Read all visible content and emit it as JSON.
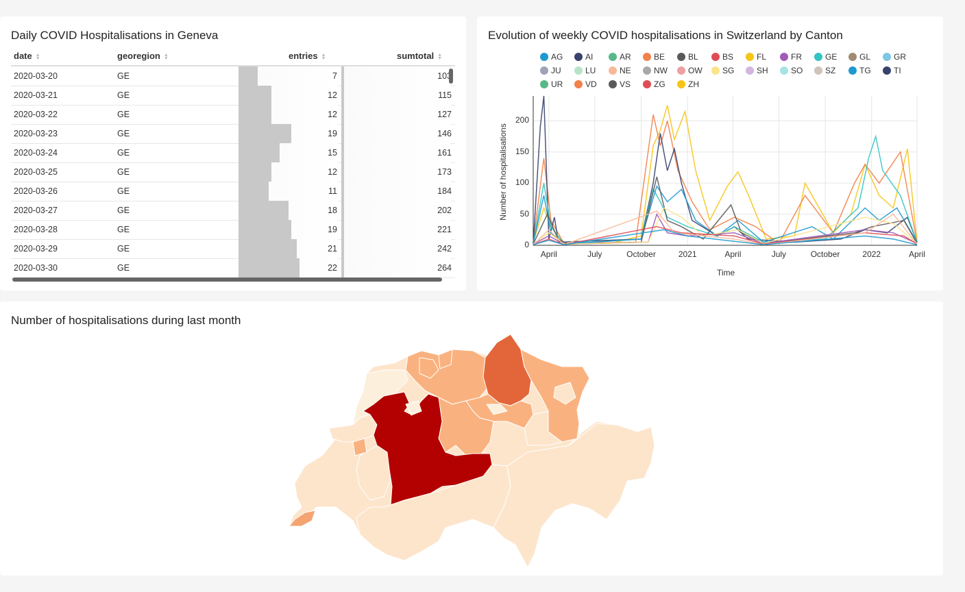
{
  "table": {
    "title": "Daily COVID Hospitalisations in Geneva",
    "columns": [
      "date",
      "georegion",
      "entries",
      "sumtotal"
    ],
    "rows": [
      {
        "date": "2020-03-20",
        "georegion": "GE",
        "entries": "7",
        "sumtotal": "103"
      },
      {
        "date": "2020-03-21",
        "georegion": "GE",
        "entries": "12",
        "sumtotal": "115"
      },
      {
        "date": "2020-03-22",
        "georegion": "GE",
        "entries": "12",
        "sumtotal": "127"
      },
      {
        "date": "2020-03-23",
        "georegion": "GE",
        "entries": "19",
        "sumtotal": "146"
      },
      {
        "date": "2020-03-24",
        "georegion": "GE",
        "entries": "15",
        "sumtotal": "161"
      },
      {
        "date": "2020-03-25",
        "georegion": "GE",
        "entries": "12",
        "sumtotal": "173"
      },
      {
        "date": "2020-03-26",
        "georegion": "GE",
        "entries": "11",
        "sumtotal": "184"
      },
      {
        "date": "2020-03-27",
        "georegion": "GE",
        "entries": "18",
        "sumtotal": "202"
      },
      {
        "date": "2020-03-28",
        "georegion": "GE",
        "entries": "19",
        "sumtotal": "221"
      },
      {
        "date": "2020-03-29",
        "georegion": "GE",
        "entries": "21",
        "sumtotal": "242"
      },
      {
        "date": "2020-03-30",
        "georegion": "GE",
        "entries": "22",
        "sumtotal": "264"
      }
    ],
    "entries_max": 36,
    "sumtotal_max": 14000
  },
  "chart": {
    "title": "Evolution of weekly COVID hospitalisations in Switzerland by Canton",
    "legend": [
      {
        "name": "AG",
        "color": "#1f9ad0"
      },
      {
        "name": "AI",
        "color": "#37436b"
      },
      {
        "name": "AR",
        "color": "#58b887"
      },
      {
        "name": "BE",
        "color": "#f2814a"
      },
      {
        "name": "BL",
        "color": "#5a5a5a"
      },
      {
        "name": "BS",
        "color": "#e04c55"
      },
      {
        "name": "FL",
        "color": "#f5c518"
      },
      {
        "name": "FR",
        "color": "#a25ab8"
      },
      {
        "name": "GE",
        "color": "#33c4c4"
      },
      {
        "name": "GL",
        "color": "#a08a72"
      },
      {
        "name": "GR",
        "color": "#7cc7e3"
      },
      {
        "name": "JU",
        "color": "#9ea3b8"
      },
      {
        "name": "LU",
        "color": "#b8e3c6"
      },
      {
        "name": "NE",
        "color": "#f8b998"
      },
      {
        "name": "NW",
        "color": "#a8a8a8"
      },
      {
        "name": "OW",
        "color": "#eca0a4"
      },
      {
        "name": "SG",
        "color": "#fbe38a"
      },
      {
        "name": "SH",
        "color": "#d3b5e0"
      },
      {
        "name": "SO",
        "color": "#a6e3e3"
      },
      {
        "name": "SZ",
        "color": "#cfc4b8"
      },
      {
        "name": "TG",
        "color": "#1f9ad0"
      },
      {
        "name": "TI",
        "color": "#37436b"
      },
      {
        "name": "UR",
        "color": "#58b887"
      },
      {
        "name": "VD",
        "color": "#f2814a"
      },
      {
        "name": "VS",
        "color": "#5a5a5a"
      },
      {
        "name": "ZG",
        "color": "#e04c55"
      },
      {
        "name": "ZH",
        "color": "#f5c518"
      }
    ],
    "ylabel": "Number of hospitalisations",
    "xlabel": "Time"
  },
  "chart_data": {
    "type": "line",
    "title": "Evolution of weekly COVID hospitalisations in Switzerland by Canton",
    "xlabel": "Time",
    "ylabel": "Number of hospitalisations",
    "x_start": "2020-03-01",
    "x_end": "2022-04-01",
    "xticks": [
      "April",
      "July",
      "October",
      "2021",
      "April",
      "July",
      "October",
      "2022",
      "April"
    ],
    "xtick_dates": [
      "2020-04-01",
      "2020-07-01",
      "2020-10-01",
      "2021-01-01",
      "2021-04-01",
      "2021-07-01",
      "2021-10-01",
      "2022-01-01",
      "2022-04-01"
    ],
    "ylim": [
      0,
      240
    ],
    "yticks": [
      0,
      50,
      100,
      150,
      200
    ],
    "grid": true,
    "series": [
      {
        "name": "ZH",
        "color": "#f5c518",
        "points": [
          [
            "2020-03-01",
            5
          ],
          [
            "2020-03-22",
            60
          ],
          [
            "2020-04-05",
            30
          ],
          [
            "2020-05-01",
            3
          ],
          [
            "2020-08-01",
            3
          ],
          [
            "2020-10-01",
            15
          ],
          [
            "2020-10-25",
            160
          ],
          [
            "2020-11-08",
            185
          ],
          [
            "2020-11-22",
            225
          ],
          [
            "2020-12-06",
            170
          ],
          [
            "2020-12-27",
            215
          ],
          [
            "2021-01-17",
            120
          ],
          [
            "2021-02-14",
            40
          ],
          [
            "2021-03-21",
            95
          ],
          [
            "2021-04-11",
            118
          ],
          [
            "2021-05-02",
            80
          ],
          [
            "2021-06-06",
            10
          ],
          [
            "2021-08-01",
            15
          ],
          [
            "2021-08-22",
            100
          ],
          [
            "2021-09-19",
            60
          ],
          [
            "2021-10-17",
            20
          ],
          [
            "2021-11-21",
            50
          ],
          [
            "2021-12-19",
            130
          ],
          [
            "2022-01-16",
            80
          ],
          [
            "2022-02-13",
            60
          ],
          [
            "2022-03-13",
            155
          ],
          [
            "2022-04-01",
            5
          ]
        ]
      },
      {
        "name": "BE",
        "color": "#f2814a",
        "points": [
          [
            "2020-03-01",
            5
          ],
          [
            "2020-03-22",
            140
          ],
          [
            "2020-04-05",
            40
          ],
          [
            "2020-05-01",
            3
          ],
          [
            "2020-09-20",
            5
          ],
          [
            "2020-10-25",
            210
          ],
          [
            "2020-11-08",
            160
          ],
          [
            "2020-11-22",
            200
          ],
          [
            "2020-12-13",
            120
          ],
          [
            "2021-01-10",
            70
          ],
          [
            "2021-02-14",
            25
          ],
          [
            "2021-04-04",
            45
          ],
          [
            "2021-05-16",
            30
          ],
          [
            "2021-07-01",
            3
          ],
          [
            "2021-08-22",
            80
          ],
          [
            "2021-09-19",
            50
          ],
          [
            "2021-10-17",
            20
          ],
          [
            "2021-11-28",
            100
          ],
          [
            "2021-12-19",
            130
          ],
          [
            "2022-01-16",
            100
          ],
          [
            "2022-02-27",
            150
          ],
          [
            "2022-04-01",
            5
          ]
        ]
      },
      {
        "name": "AI",
        "color": "#37436b",
        "points": [
          [
            "2020-03-01",
            2
          ],
          [
            "2020-03-15",
            190
          ],
          [
            "2020-03-22",
            240
          ],
          [
            "2020-04-01",
            10
          ],
          [
            "2020-04-12",
            45
          ],
          [
            "2020-04-20",
            5
          ],
          [
            "2020-10-01",
            10
          ],
          [
            "2020-10-25",
            100
          ],
          [
            "2020-11-08",
            180
          ],
          [
            "2020-11-22",
            120
          ],
          [
            "2020-12-06",
            155
          ],
          [
            "2020-12-20",
            100
          ],
          [
            "2021-01-10",
            40
          ],
          [
            "2021-03-01",
            15
          ],
          [
            "2021-04-04",
            30
          ],
          [
            "2021-05-01",
            10
          ],
          [
            "2021-08-01",
            5
          ],
          [
            "2021-11-01",
            10
          ],
          [
            "2021-12-19",
            25
          ],
          [
            "2022-02-01",
            20
          ],
          [
            "2022-03-13",
            45
          ],
          [
            "2022-04-01",
            5
          ]
        ]
      },
      {
        "name": "GE",
        "color": "#33c4c4",
        "points": [
          [
            "2020-03-01",
            3
          ],
          [
            "2020-03-22",
            100
          ],
          [
            "2020-04-05",
            30
          ],
          [
            "2020-05-01",
            2
          ],
          [
            "2020-10-01",
            10
          ],
          [
            "2020-10-25",
            90
          ],
          [
            "2020-11-08",
            70
          ],
          [
            "2020-11-22",
            45
          ],
          [
            "2021-01-01",
            30
          ],
          [
            "2021-02-28",
            15
          ],
          [
            "2021-04-04",
            30
          ],
          [
            "2021-06-01",
            5
          ],
          [
            "2021-10-01",
            10
          ],
          [
            "2021-12-05",
            60
          ],
          [
            "2021-12-26",
            140
          ],
          [
            "2022-01-09",
            175
          ],
          [
            "2022-01-23",
            120
          ],
          [
            "2022-02-27",
            80
          ],
          [
            "2022-04-01",
            5
          ]
        ]
      },
      {
        "name": "AG",
        "color": "#1f9ad0",
        "points": [
          [
            "2020-03-01",
            3
          ],
          [
            "2020-03-22",
            80
          ],
          [
            "2020-04-05",
            20
          ],
          [
            "2020-05-01",
            2
          ],
          [
            "2020-10-01",
            10
          ],
          [
            "2020-11-01",
            95
          ],
          [
            "2020-11-22",
            70
          ],
          [
            "2020-12-20",
            90
          ],
          [
            "2021-01-17",
            40
          ],
          [
            "2021-03-01",
            15
          ],
          [
            "2021-04-11",
            40
          ],
          [
            "2021-06-01",
            5
          ],
          [
            "2021-09-05",
            30
          ],
          [
            "2021-10-17",
            10
          ],
          [
            "2021-12-19",
            60
          ],
          [
            "2022-01-16",
            40
          ],
          [
            "2022-02-20",
            60
          ],
          [
            "2022-04-01",
            5
          ]
        ]
      },
      {
        "name": "VS",
        "color": "#5a5a5a",
        "points": [
          [
            "2020-03-01",
            2
          ],
          [
            "2020-03-29",
            50
          ],
          [
            "2020-04-19",
            10
          ],
          [
            "2020-05-10",
            2
          ],
          [
            "2020-10-01",
            5
          ],
          [
            "2020-11-01",
            110
          ],
          [
            "2020-11-22",
            40
          ],
          [
            "2020-12-20",
            30
          ],
          [
            "2021-02-01",
            10
          ],
          [
            "2021-03-28",
            65
          ],
          [
            "2021-04-18",
            20
          ],
          [
            "2021-06-01",
            3
          ],
          [
            "2021-11-28",
            20
          ],
          [
            "2022-01-02",
            30
          ],
          [
            "2022-03-06",
            40
          ],
          [
            "2022-04-01",
            3
          ]
        ]
      },
      {
        "name": "FR",
        "color": "#a25ab8",
        "points": [
          [
            "2020-03-01",
            2
          ],
          [
            "2020-04-01",
            15
          ],
          [
            "2020-05-01",
            2
          ],
          [
            "2020-10-15",
            5
          ],
          [
            "2020-11-01",
            50
          ],
          [
            "2020-11-22",
            20
          ],
          [
            "2021-01-01",
            15
          ],
          [
            "2021-04-04",
            20
          ],
          [
            "2021-06-01",
            3
          ],
          [
            "2021-12-19",
            25
          ],
          [
            "2022-02-13",
            20
          ],
          [
            "2022-04-01",
            3
          ]
        ]
      },
      {
        "name": "SG",
        "color": "#fbe38a",
        "points": [
          [
            "2020-03-01",
            2
          ],
          [
            "2020-04-01",
            20
          ],
          [
            "2020-05-01",
            2
          ],
          [
            "2020-10-15",
            5
          ],
          [
            "2020-11-15",
            60
          ],
          [
            "2020-12-20",
            45
          ],
          [
            "2021-02-01",
            15
          ],
          [
            "2021-04-11",
            25
          ],
          [
            "2021-06-01",
            3
          ],
          [
            "2021-12-19",
            45
          ],
          [
            "2022-02-13",
            35
          ],
          [
            "2022-04-01",
            3
          ]
        ]
      },
      {
        "name": "BS",
        "color": "#e04c55",
        "points": [
          [
            "2020-03-01",
            1
          ],
          [
            "2020-04-01",
            10
          ],
          [
            "2020-05-01",
            1
          ],
          [
            "2020-11-01",
            30
          ],
          [
            "2020-12-20",
            20
          ],
          [
            "2021-04-04",
            15
          ],
          [
            "2021-06-01",
            2
          ],
          [
            "2021-12-19",
            20
          ],
          [
            "2022-03-06",
            15
          ],
          [
            "2022-04-01",
            2
          ]
        ]
      },
      {
        "name": "NE",
        "color": "#f8b998",
        "points": [
          [
            "2020-03-01",
            1
          ],
          [
            "2020-04-01",
            25
          ],
          [
            "2020-05-01",
            1
          ],
          [
            "2020-11-01",
            55
          ],
          [
            "2020-12-06",
            20
          ],
          [
            "2021-04-04",
            10
          ],
          [
            "2021-06-01",
            1
          ],
          [
            "2021-12-19",
            20
          ],
          [
            "2022-02-13",
            50
          ],
          [
            "2022-04-01",
            2
          ]
        ]
      },
      {
        "name": "TG",
        "color": "#1f9ad0",
        "points": [
          [
            "2020-03-01",
            1
          ],
          [
            "2020-04-01",
            8
          ],
          [
            "2020-05-01",
            1
          ],
          [
            "2020-11-15",
            25
          ],
          [
            "2021-01-01",
            15
          ],
          [
            "2021-06-01",
            1
          ],
          [
            "2021-12-19",
            15
          ],
          [
            "2022-02-13",
            10
          ],
          [
            "2022-04-01",
            1
          ]
        ]
      }
    ]
  },
  "map": {
    "title": "Number of hospitalisations during last month",
    "colors": {
      "low": "#fde5cc",
      "mid": "#f9b27f",
      "high": "#e3663a",
      "max": "#b30000",
      "pale": "#fcefdc"
    }
  }
}
